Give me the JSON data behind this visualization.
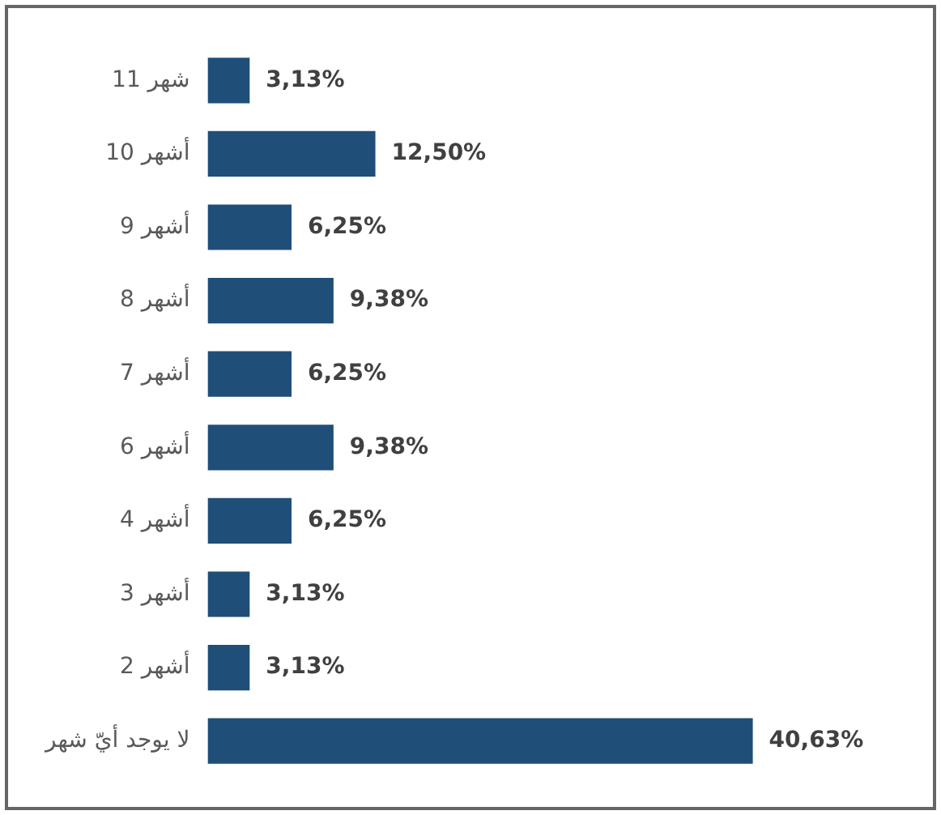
{
  "chart_data": {
    "type": "bar",
    "orientation": "horizontal",
    "categories": [
      "11 شهر",
      "10 أشهر",
      "9 أشهر",
      "8 أشهر",
      "7 أشهر",
      "6 أشهر",
      "4 أشهر",
      "3 أشهر",
      "2 أشهر",
      "لا يوجد أيّ شهر"
    ],
    "values": [
      3.13,
      12.5,
      6.25,
      9.38,
      6.25,
      9.38,
      6.25,
      3.13,
      3.13,
      40.63
    ],
    "value_labels": [
      "3,13%",
      "12,50%",
      "6,25%",
      "9,38%",
      "6,25%",
      "9,38%",
      "6,25%",
      "3,13%",
      "3,13%",
      "40,63%"
    ],
    "color": "#1f4e79",
    "tick_labels": "y",
    "grid": false,
    "legend": false
  }
}
